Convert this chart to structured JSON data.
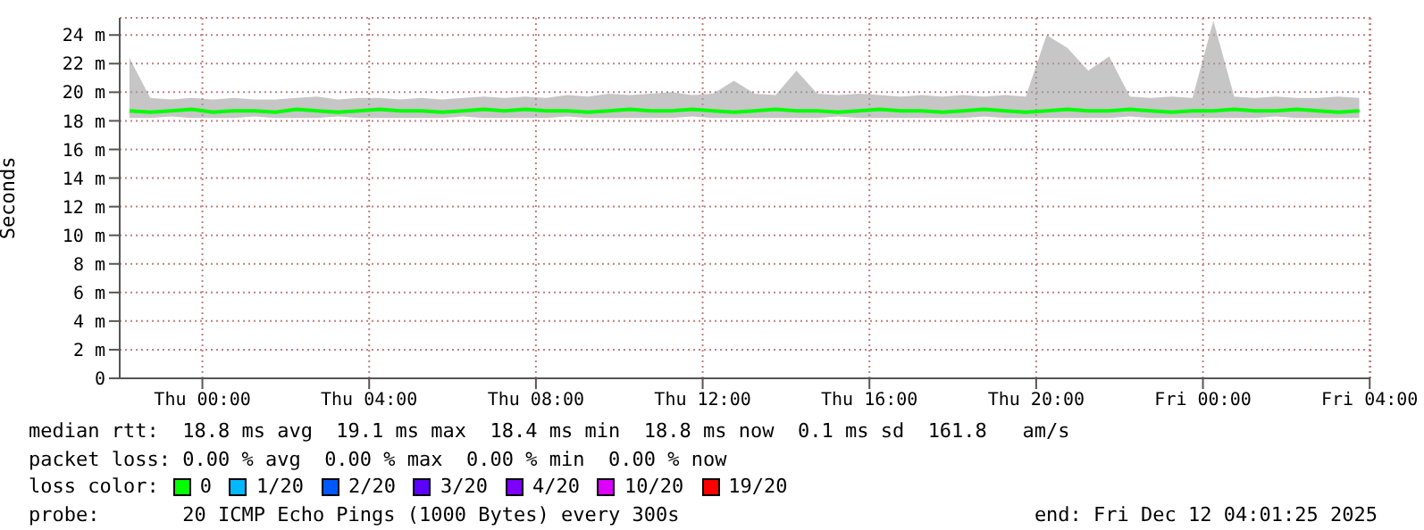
{
  "chart_data": {
    "type": "line",
    "ylabel": "Seconds",
    "legend_title": "loss color:",
    "legend": "bottom",
    "grid": true,
    "line_style": "solid",
    "marker": "none",
    "xlim": [
      "2025-12-10T22:01",
      "2025-12-12T04:01"
    ],
    "xticks": [
      {
        "value": "2025-12-11T00:00",
        "label": "Thu 00:00"
      },
      {
        "value": "2025-12-11T04:00",
        "label": "Thu 04:00"
      },
      {
        "value": "2025-12-11T08:00",
        "label": "Thu 08:00"
      },
      {
        "value": "2025-12-11T12:00",
        "label": "Thu 12:00"
      },
      {
        "value": "2025-12-11T16:00",
        "label": "Thu 16:00"
      },
      {
        "value": "2025-12-11T20:00",
        "label": "Thu 20:00"
      },
      {
        "value": "2025-12-12T00:00",
        "label": "Fri 00:00"
      },
      {
        "value": "2025-12-12T04:00",
        "label": "Fri 04:00"
      }
    ],
    "ylim": [
      0,
      25.2
    ],
    "yticks": [
      0,
      {
        "value": 2,
        "label": "2 m"
      },
      {
        "value": 4,
        "label": "4 m"
      },
      {
        "value": 6,
        "label": "6 m"
      },
      {
        "value": 8,
        "label": "8 m"
      },
      {
        "value": 10,
        "label": "10 m"
      },
      {
        "value": 12,
        "label": "12 m"
      },
      {
        "value": 14,
        "label": "14 m"
      },
      {
        "value": 16,
        "label": "16 m"
      },
      {
        "value": 18,
        "label": "18 m"
      },
      {
        "value": 20,
        "label": "20 m"
      },
      {
        "value": 22,
        "label": "22 m"
      },
      {
        "value": 24,
        "label": "24 m"
      }
    ],
    "x": [
      "2025-12-10T22:15",
      "2025-12-10T22:45",
      "2025-12-10T23:15",
      "2025-12-10T23:45",
      "2025-12-11T00:15",
      "2025-12-11T00:45",
      "2025-12-11T01:15",
      "2025-12-11T01:45",
      "2025-12-11T02:15",
      "2025-12-11T02:45",
      "2025-12-11T03:15",
      "2025-12-11T03:45",
      "2025-12-11T04:15",
      "2025-12-11T04:45",
      "2025-12-11T05:15",
      "2025-12-11T05:45",
      "2025-12-11T06:15",
      "2025-12-11T06:45",
      "2025-12-11T07:15",
      "2025-12-11T07:45",
      "2025-12-11T08:15",
      "2025-12-11T08:45",
      "2025-12-11T09:15",
      "2025-12-11T09:45",
      "2025-12-11T10:15",
      "2025-12-11T10:45",
      "2025-12-11T11:15",
      "2025-12-11T11:45",
      "2025-12-11T12:15",
      "2025-12-11T12:45",
      "2025-12-11T13:15",
      "2025-12-11T13:45",
      "2025-12-11T14:15",
      "2025-12-11T14:45",
      "2025-12-11T15:15",
      "2025-12-11T15:45",
      "2025-12-11T16:15",
      "2025-12-11T16:45",
      "2025-12-11T17:15",
      "2025-12-11T17:45",
      "2025-12-11T18:15",
      "2025-12-11T18:45",
      "2025-12-11T19:15",
      "2025-12-11T19:45",
      "2025-12-11T20:15",
      "2025-12-11T20:45",
      "2025-12-11T21:15",
      "2025-12-11T21:45",
      "2025-12-11T22:15",
      "2025-12-11T22:45",
      "2025-12-11T23:15",
      "2025-12-11T23:45",
      "2025-12-12T00:15",
      "2025-12-12T00:45",
      "2025-12-12T01:15",
      "2025-12-12T01:45",
      "2025-12-12T02:15",
      "2025-12-12T02:45",
      "2025-12-12T03:15",
      "2025-12-12T03:45"
    ],
    "series": [
      {
        "name": "0",
        "color": "#00ff00",
        "values": [
          18.7,
          18.6,
          18.7,
          18.8,
          18.6,
          18.7,
          18.7,
          18.6,
          18.8,
          18.7,
          18.6,
          18.7,
          18.8,
          18.7,
          18.7,
          18.6,
          18.7,
          18.8,
          18.7,
          18.8,
          18.7,
          18.7,
          18.6,
          18.7,
          18.8,
          18.7,
          18.7,
          18.8,
          18.7,
          18.6,
          18.7,
          18.8,
          18.7,
          18.7,
          18.6,
          18.7,
          18.8,
          18.7,
          18.7,
          18.6,
          18.7,
          18.8,
          18.7,
          18.6,
          18.7,
          18.8,
          18.7,
          18.7,
          18.8,
          18.7,
          18.6,
          18.7,
          18.7,
          18.8,
          18.7,
          18.7,
          18.8,
          18.7,
          18.6,
          18.7
        ],
        "lower": [
          18.2,
          18.2,
          18.3,
          18.2,
          18.2,
          18.2,
          18.3,
          18.2,
          18.2,
          18.2,
          18.3,
          18.2,
          18.2,
          18.2,
          18.2,
          18.2,
          18.3,
          18.2,
          18.2,
          18.2,
          18.2,
          18.3,
          18.2,
          18.2,
          18.2,
          18.2,
          18.2,
          18.3,
          18.2,
          18.2,
          18.2,
          18.2,
          18.2,
          18.2,
          18.3,
          18.2,
          18.2,
          18.2,
          18.2,
          18.2,
          18.2,
          18.3,
          18.2,
          18.2,
          18.2,
          18.2,
          18.2,
          18.2,
          18.3,
          18.2,
          18.2,
          18.2,
          18.2,
          18.2,
          18.2,
          18.3,
          18.2,
          18.2,
          18.2,
          18.2
        ],
        "upper": [
          22.4,
          19.6,
          19.5,
          19.6,
          19.5,
          19.6,
          19.5,
          19.5,
          19.6,
          19.7,
          19.5,
          19.6,
          19.6,
          19.5,
          19.6,
          19.5,
          19.6,
          19.7,
          19.6,
          19.7,
          19.6,
          19.8,
          19.7,
          19.9,
          19.8,
          19.9,
          20.0,
          19.8,
          19.9,
          20.8,
          19.9,
          19.8,
          21.5,
          19.9,
          19.8,
          19.9,
          19.8,
          19.7,
          19.8,
          19.7,
          19.8,
          19.7,
          19.8,
          19.7,
          24.0,
          23.1,
          21.5,
          22.5,
          19.7,
          19.6,
          19.7,
          19.6,
          25.0,
          19.7,
          19.6,
          19.7,
          19.6,
          19.6,
          19.7,
          19.6
        ]
      },
      {
        "name": "1/20",
        "color": "#00b8ff",
        "values": [
          null,
          null,
          null,
          null,
          null,
          null,
          null,
          null,
          null,
          null,
          null,
          null,
          null,
          null,
          null,
          null,
          null,
          null,
          null,
          null,
          null,
          null,
          null,
          null,
          null,
          null,
          null,
          null,
          null,
          null,
          null,
          null,
          null,
          null,
          null,
          null,
          null,
          null,
          null,
          null,
          null,
          null,
          null,
          null,
          null,
          null,
          null,
          null,
          null,
          null,
          null,
          null,
          null,
          null,
          null,
          null,
          null,
          null,
          null,
          null
        ]
      },
      {
        "name": "2/20",
        "color": "#0059ff",
        "values": [
          null,
          null,
          null,
          null,
          null,
          null,
          null,
          null,
          null,
          null,
          null,
          null,
          null,
          null,
          null,
          null,
          null,
          null,
          null,
          null,
          null,
          null,
          null,
          null,
          null,
          null,
          null,
          null,
          null,
          null,
          null,
          null,
          null,
          null,
          null,
          null,
          null,
          null,
          null,
          null,
          null,
          null,
          null,
          null,
          null,
          null,
          null,
          null,
          null,
          null,
          null,
          null,
          null,
          null,
          null,
          null,
          null,
          null,
          null,
          null
        ]
      },
      {
        "name": "3/20",
        "color": "#5e00ff",
        "values": [
          null,
          null,
          null,
          null,
          null,
          null,
          null,
          null,
          null,
          null,
          null,
          null,
          null,
          null,
          null,
          null,
          null,
          null,
          null,
          null,
          null,
          null,
          null,
          null,
          null,
          null,
          null,
          null,
          null,
          null,
          null,
          null,
          null,
          null,
          null,
          null,
          null,
          null,
          null,
          null,
          null,
          null,
          null,
          null,
          null,
          null,
          null,
          null,
          null,
          null,
          null,
          null,
          null,
          null,
          null,
          null,
          null,
          null,
          null,
          null
        ]
      },
      {
        "name": "4/20",
        "color": "#7e00ff",
        "values": [
          null,
          null,
          null,
          null,
          null,
          null,
          null,
          null,
          null,
          null,
          null,
          null,
          null,
          null,
          null,
          null,
          null,
          null,
          null,
          null,
          null,
          null,
          null,
          null,
          null,
          null,
          null,
          null,
          null,
          null,
          null,
          null,
          null,
          null,
          null,
          null,
          null,
          null,
          null,
          null,
          null,
          null,
          null,
          null,
          null,
          null,
          null,
          null,
          null,
          null,
          null,
          null,
          null,
          null,
          null,
          null,
          null,
          null,
          null,
          null
        ]
      },
      {
        "name": "10/20",
        "color": "#dd00ff",
        "values": [
          null,
          null,
          null,
          null,
          null,
          null,
          null,
          null,
          null,
          null,
          null,
          null,
          null,
          null,
          null,
          null,
          null,
          null,
          null,
          null,
          null,
          null,
          null,
          null,
          null,
          null,
          null,
          null,
          null,
          null,
          null,
          null,
          null,
          null,
          null,
          null,
          null,
          null,
          null,
          null,
          null,
          null,
          null,
          null,
          null,
          null,
          null,
          null,
          null,
          null,
          null,
          null,
          null,
          null,
          null,
          null,
          null,
          null,
          null,
          null
        ]
      },
      {
        "name": "19/20",
        "color": "#ff0000",
        "values": [
          null,
          null,
          null,
          null,
          null,
          null,
          null,
          null,
          null,
          null,
          null,
          null,
          null,
          null,
          null,
          null,
          null,
          null,
          null,
          null,
          null,
          null,
          null,
          null,
          null,
          null,
          null,
          null,
          null,
          null,
          null,
          null,
          null,
          null,
          null,
          null,
          null,
          null,
          null,
          null,
          null,
          null,
          null,
          null,
          null,
          null,
          null,
          null,
          null,
          null,
          null,
          null,
          null,
          null,
          null,
          null,
          null,
          null,
          null,
          null
        ]
      }
    ],
    "annotations": [
      "median rtt:  18.8 ms avg  19.1 ms max  18.4 ms min  18.8 ms now  0.1 ms sd  161.8   am/s",
      "packet loss: 0.00 % avg  0.00 % max  0.00 % min  0.00 % now",
      "probe:       20 ICMP Echo Pings (1000 Bytes) every 300s",
      "end: Fri Dec 12 04:01:25 2025"
    ]
  }
}
